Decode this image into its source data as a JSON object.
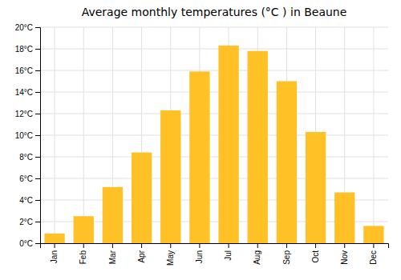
{
  "chart_data": {
    "type": "bar",
    "title": "Average monthly temperatures (°C ) in Beaune",
    "categories": [
      "Jan",
      "Feb",
      "Mar",
      "Apr",
      "May",
      "Jun",
      "Jul",
      "Aug",
      "Sep",
      "Oct",
      "Nov",
      "Dec"
    ],
    "values": [
      0.9,
      2.5,
      5.2,
      8.4,
      12.3,
      15.9,
      18.3,
      17.8,
      15.0,
      10.3,
      4.7,
      1.6
    ],
    "color": "#FFC125",
    "ylim": [
      0,
      20
    ],
    "yticks": [
      {
        "value": 0,
        "label": "0°C"
      },
      {
        "value": 2,
        "label": "2°C"
      },
      {
        "value": 4,
        "label": "4°C"
      },
      {
        "value": 6,
        "label": "6°C"
      },
      {
        "value": 8,
        "label": "8°C"
      },
      {
        "value": 10,
        "label": "10°C"
      },
      {
        "value": 12,
        "label": "12°C"
      },
      {
        "value": 14,
        "label": "14°C"
      },
      {
        "value": 16,
        "label": "16°C"
      },
      {
        "value": 18,
        "label": "18°C"
      },
      {
        "value": 20,
        "label": "20°C"
      }
    ],
    "grid": true
  }
}
